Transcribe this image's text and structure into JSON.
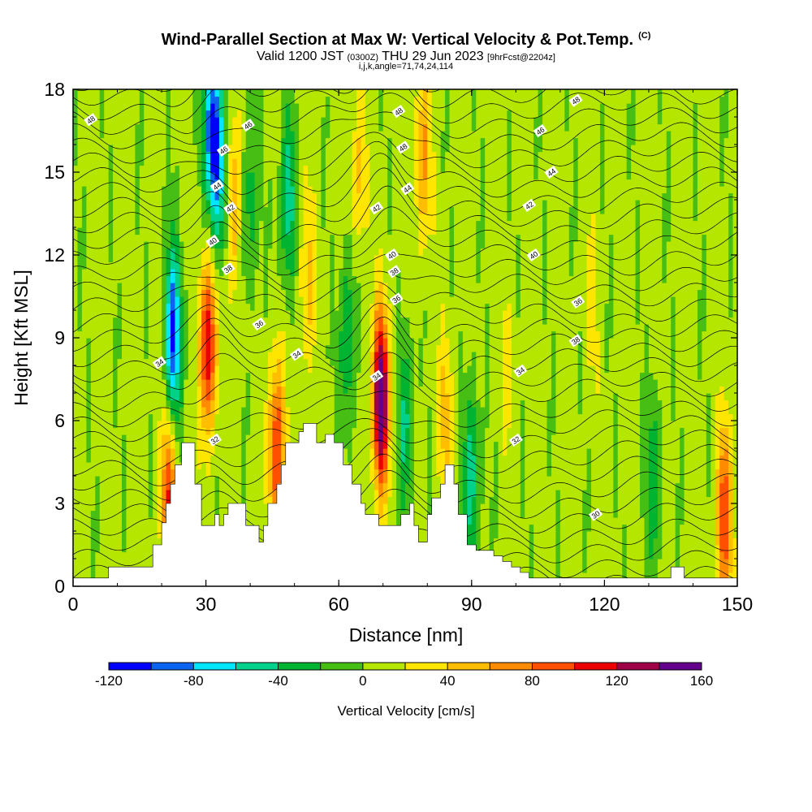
{
  "chart_data": {
    "type": "heatmap",
    "title": "Wind-Parallel Section at Max W: Vertical Velocity & Pot.Temp.",
    "title_mark": "(C)",
    "subtitle_parts": [
      "Valid 1200 JST",
      "(0300Z)",
      "THU 29 Jun 2023",
      "[9hrFcst@2204z]"
    ],
    "subtitle2": "i,j,k,angle=71,74,24,114",
    "xlabel": "Distance [nm]",
    "ylabel": "Height [Kft MSL]",
    "xlim": [
      0,
      150
    ],
    "ylim": [
      0,
      18
    ],
    "x_ticks": [
      "0",
      "30",
      "60",
      "90",
      "120",
      "150"
    ],
    "y_ticks": [
      "0",
      "3",
      "6",
      "9",
      "12",
      "15",
      "18"
    ],
    "colorbar": {
      "label": "Vertical Velocity [cm/s]",
      "range": [
        -120,
        160
      ],
      "step": 20,
      "tick_labels": [
        "-120",
        "-80",
        "-40",
        "0",
        "40",
        "80",
        "120",
        "160"
      ],
      "colors": [
        "#0000ff",
        "#0a64f0",
        "#00e6ff",
        "#00d28c",
        "#00b432",
        "#46be14",
        "#b4e600",
        "#ffe600",
        "#ffbe00",
        "#ff8c00",
        "#ff5000",
        "#eb0000",
        "#a00046",
        "#64008c"
      ]
    },
    "velocity_features": [
      {
        "x": 21.5,
        "z": 3.2,
        "w": 90
      },
      {
        "x": 22.5,
        "z": 9.0,
        "w": -110
      },
      {
        "x": 30.5,
        "z": 8.8,
        "w": 120
      },
      {
        "x": 31.5,
        "z": 16.5,
        "w": -120
      },
      {
        "x": 33.5,
        "z": 14.5,
        "w": -60
      },
      {
        "x": 36.0,
        "z": 14.0,
        "w": 60
      },
      {
        "x": 40.0,
        "z": 14.0,
        "w": -40
      },
      {
        "x": 46.0,
        "z": 5.0,
        "w": 100
      },
      {
        "x": 48.5,
        "z": 14.0,
        "w": -60
      },
      {
        "x": 53.0,
        "z": 11.0,
        "w": 40
      },
      {
        "x": 62.0,
        "z": 9.0,
        "w": -50
      },
      {
        "x": 64.5,
        "z": 15.0,
        "w": 40
      },
      {
        "x": 69.5,
        "z": 6.8,
        "w": 160
      },
      {
        "x": 75.0,
        "z": 6.0,
        "w": -50
      },
      {
        "x": 79.0,
        "z": 15.5,
        "w": 60
      },
      {
        "x": 84.0,
        "z": 6.0,
        "w": 40
      },
      {
        "x": 90.0,
        "z": 4.0,
        "w": -60
      },
      {
        "x": 98.0,
        "z": 8.0,
        "w": 20
      },
      {
        "x": 117.0,
        "z": 10.0,
        "w": 20
      },
      {
        "x": 131.0,
        "z": 4.0,
        "w": -40
      },
      {
        "x": 147.0,
        "z": 2.5,
        "w": 90
      }
    ],
    "theta_contours": [
      {
        "value": "30",
        "label_x": 118,
        "label_z": 2.6
      },
      {
        "value": "32",
        "label_x": 32,
        "label_z": 5.3
      },
      {
        "value": "32",
        "label_x": 100,
        "label_z": 5.3
      },
      {
        "value": "34",
        "label_x": 19.5,
        "label_z": 8.1
      },
      {
        "value": "34",
        "label_x": 50.5,
        "label_z": 8.4
      },
      {
        "value": "34",
        "label_x": 68.5,
        "label_z": 7.6
      },
      {
        "value": "34",
        "label_x": 101,
        "label_z": 7.8
      },
      {
        "value": "36",
        "label_x": 42,
        "label_z": 9.5
      },
      {
        "value": "36",
        "label_x": 73,
        "label_z": 10.4
      },
      {
        "value": "36",
        "label_x": 114,
        "label_z": 10.3
      },
      {
        "value": "38",
        "label_x": 35,
        "label_z": 11.5
      },
      {
        "value": "38",
        "label_x": 72.5,
        "label_z": 11.4
      },
      {
        "value": "38",
        "label_x": 113.5,
        "label_z": 8.9
      },
      {
        "value": "40",
        "label_x": 31.5,
        "label_z": 12.5
      },
      {
        "value": "40",
        "label_x": 72,
        "label_z": 12.0
      },
      {
        "value": "40",
        "label_x": 104,
        "label_z": 12.0
      },
      {
        "value": "42",
        "label_x": 35.5,
        "label_z": 13.7
      },
      {
        "value": "42",
        "label_x": 68.5,
        "label_z": 13.7
      },
      {
        "value": "42",
        "label_x": 103,
        "label_z": 13.8
      },
      {
        "value": "44",
        "label_x": 32.5,
        "label_z": 14.5
      },
      {
        "value": "44",
        "label_x": 75.5,
        "label_z": 14.4
      },
      {
        "value": "44",
        "label_x": 108,
        "label_z": 15.0
      },
      {
        "value": "46",
        "label_x": 34,
        "label_z": 15.8
      },
      {
        "value": "46",
        "label_x": 39.5,
        "label_z": 16.7
      },
      {
        "value": "46",
        "label_x": 105.5,
        "label_z": 16.5
      },
      {
        "value": "48",
        "label_x": 4,
        "label_z": 16.9
      },
      {
        "value": "48",
        "label_x": 74.5,
        "label_z": 15.9
      },
      {
        "value": "48",
        "label_x": 73.5,
        "label_z": 17.2
      },
      {
        "value": "48",
        "label_x": 113.5,
        "label_z": 17.6
      }
    ],
    "terrain_kft": [
      [
        0,
        0.3
      ],
      [
        8,
        0.3
      ],
      [
        8,
        0.7
      ],
      [
        18,
        0.7
      ],
      [
        18,
        1.5
      ],
      [
        20,
        1.5
      ],
      [
        20,
        2.3
      ],
      [
        21,
        2.3
      ],
      [
        21,
        3.0
      ],
      [
        22,
        3.0
      ],
      [
        22,
        3.7
      ],
      [
        23,
        3.7
      ],
      [
        23,
        4.4
      ],
      [
        24.5,
        4.4
      ],
      [
        24.5,
        5.2
      ],
      [
        27.5,
        5.2
      ],
      [
        27.5,
        3.7
      ],
      [
        29,
        3.7
      ],
      [
        29,
        2.2
      ],
      [
        32,
        2.2
      ],
      [
        32,
        2.6
      ],
      [
        33,
        2.6
      ],
      [
        33,
        2.2
      ],
      [
        34,
        2.2
      ],
      [
        34,
        2.6
      ],
      [
        35,
        2.6
      ],
      [
        35,
        3.0
      ],
      [
        39,
        3.0
      ],
      [
        39,
        2.2
      ],
      [
        42,
        2.2
      ],
      [
        42,
        1.6
      ],
      [
        43,
        1.6
      ],
      [
        43,
        2.2
      ],
      [
        44,
        2.2
      ],
      [
        44,
        3.0
      ],
      [
        46,
        3.0
      ],
      [
        46,
        3.7
      ],
      [
        47,
        3.7
      ],
      [
        47,
        4.4
      ],
      [
        48,
        4.4
      ],
      [
        48,
        5.2
      ],
      [
        51,
        5.2
      ],
      [
        51,
        5.6
      ],
      [
        52,
        5.6
      ],
      [
        52,
        5.9
      ],
      [
        55,
        5.9
      ],
      [
        55,
        5.2
      ],
      [
        57,
        5.2
      ],
      [
        57,
        5.5
      ],
      [
        59,
        5.5
      ],
      [
        59,
        5.2
      ],
      [
        61,
        5.2
      ],
      [
        61,
        4.4
      ],
      [
        63,
        4.4
      ],
      [
        63,
        3.7
      ],
      [
        65,
        3.7
      ],
      [
        65,
        3.0
      ],
      [
        66,
        3.0
      ],
      [
        66,
        2.6
      ],
      [
        69,
        2.6
      ],
      [
        69,
        2.2
      ],
      [
        74,
        2.2
      ],
      [
        74,
        2.6
      ],
      [
        76,
        2.6
      ],
      [
        76,
        3.0
      ],
      [
        77,
        3.0
      ],
      [
        77,
        2.2
      ],
      [
        78,
        2.2
      ],
      [
        78,
        1.6
      ],
      [
        80,
        1.6
      ],
      [
        80,
        2.6
      ],
      [
        81,
        2.6
      ],
      [
        81,
        3.2
      ],
      [
        83,
        3.2
      ],
      [
        83,
        3.7
      ],
      [
        84,
        3.7
      ],
      [
        84,
        4.4
      ],
      [
        86,
        4.4
      ],
      [
        86,
        3.7
      ],
      [
        87,
        3.7
      ],
      [
        87,
        2.6
      ],
      [
        89,
        2.6
      ],
      [
        89,
        1.5
      ],
      [
        91,
        1.5
      ],
      [
        91,
        1.3
      ],
      [
        95,
        1.3
      ],
      [
        95,
        1.1
      ],
      [
        97,
        1.1
      ],
      [
        97,
        0.9
      ],
      [
        99,
        0.9
      ],
      [
        99,
        0.7
      ],
      [
        101,
        0.7
      ],
      [
        101,
        0.5
      ],
      [
        103,
        0.5
      ],
      [
        103,
        0.3
      ],
      [
        135,
        0.3
      ],
      [
        135,
        0.7
      ],
      [
        138,
        0.7
      ],
      [
        138,
        0.3
      ],
      [
        150,
        0.3
      ]
    ]
  }
}
